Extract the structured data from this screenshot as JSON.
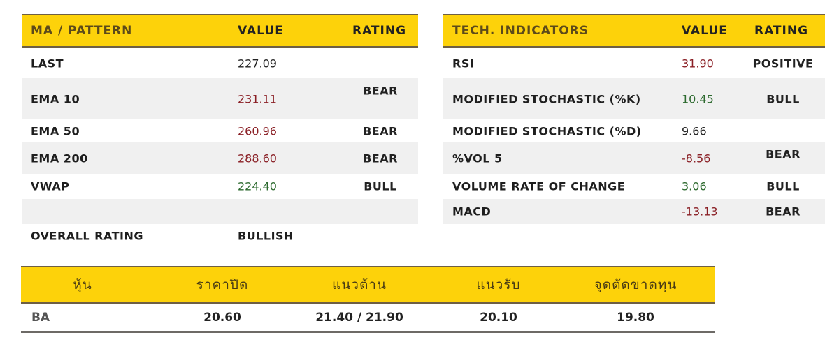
{
  "ma_table": {
    "headers": [
      "MA / PATTERN",
      "VALUE",
      "RATING"
    ],
    "rows": [
      {
        "label": "LAST",
        "value": "227.09",
        "rating": ""
      },
      {
        "label": "EMA 10",
        "value": "231.11",
        "rating": "BEAR"
      },
      {
        "label": "EMA 50",
        "value": "260.96",
        "rating": "BEAR"
      },
      {
        "label": "EMA 200",
        "value": "288.60",
        "rating": "BEAR"
      },
      {
        "label": "VWAP",
        "value": "224.40",
        "rating": "BULL"
      },
      {
        "label": "",
        "value": "",
        "rating": ""
      },
      {
        "label": "OVERALL RATING",
        "value": "BULLISH",
        "rating": ""
      }
    ]
  },
  "tech_table": {
    "headers": [
      "TECH. INDICATORS",
      "VALUE",
      "RATING"
    ],
    "rows": [
      {
        "label": "RSI",
        "value": "31.90",
        "rating": "POSITIVE"
      },
      {
        "label": "MODIFIED STOCHASTIC (%K)",
        "value": "10.45",
        "rating": "BULL"
      },
      {
        "label": "MODIFIED STOCHASTIC (%D)",
        "value": "9.66",
        "rating": ""
      },
      {
        "label": "%VOL 5",
        "value": "-8.56",
        "rating": "BEAR"
      },
      {
        "label": "VOLUME RATE OF CHANGE",
        "value": "3.06",
        "rating": "BULL"
      },
      {
        "label": "MACD",
        "value": "-13.13",
        "rating": "BEAR"
      }
    ]
  },
  "stock_table": {
    "headers": [
      "หุ้น",
      "ราคาปิด",
      "แนวต้าน",
      "แนวรับ",
      "จุดตัดขาดทุน"
    ],
    "row": [
      "BA",
      "20.60",
      "21.40 / 21.90",
      "20.10",
      "19.80"
    ]
  },
  "colors": {
    "header_bg": "#fdd20a",
    "border": "#6e5f44",
    "negative": "#8a1f25",
    "positive": "#2d6a2f"
  }
}
